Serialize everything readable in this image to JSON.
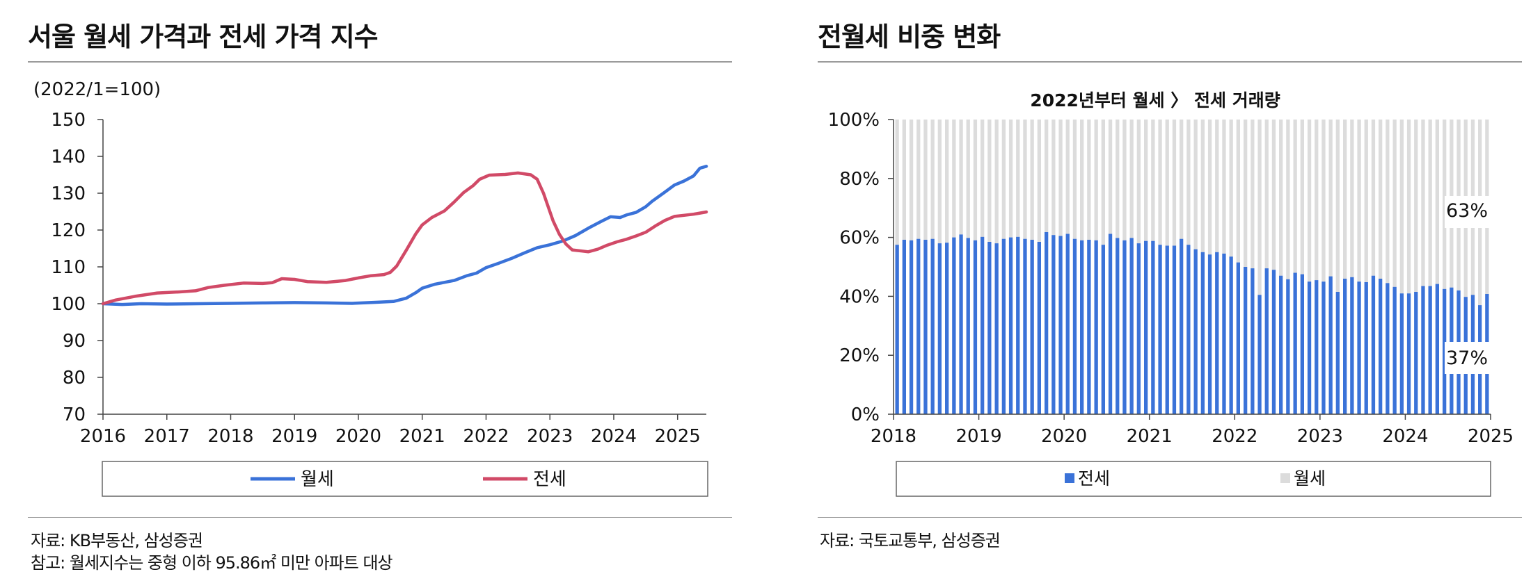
{
  "left": {
    "title": "서울 월세 가격과 전세 가격 지수",
    "source": "자료: KB부동산, 삼성증권",
    "note": "참고: 월세지수는 중형 이하 95.86㎡ 미만 아파트 대상"
  },
  "right": {
    "title": "전월세 비중 변화",
    "source": "자료: 국토교통부, 삼성증권"
  },
  "colors": {
    "wolse": "#3a72d8",
    "jeonse": "#d14a67",
    "bar_jeonse": "#3a72d8",
    "bar_wolse": "#dcdcdc"
  },
  "chart_data": [
    {
      "type": "line",
      "unit_label": "(2022/1=100)",
      "ylim": [
        70,
        150
      ],
      "yticks": [
        "150",
        "140",
        "130",
        "120",
        "110",
        "100",
        "90",
        "80",
        "70"
      ],
      "xlim": [
        2016,
        2025.45
      ],
      "xticks": [
        "2016",
        "2017",
        "2018",
        "2019",
        "2020",
        "2021",
        "2022",
        "2023",
        "2024",
        "2025"
      ],
      "series": [
        {
          "name": "월세",
          "color": "#3a72d8",
          "points": [
            [
              2016.0,
              100.0
            ],
            [
              2016.3,
              99.8
            ],
            [
              2016.6,
              100.0
            ],
            [
              2017.0,
              99.9
            ],
            [
              2017.5,
              100.0
            ],
            [
              2018.0,
              100.1
            ],
            [
              2018.5,
              100.2
            ],
            [
              2019.0,
              100.3
            ],
            [
              2019.5,
              100.2
            ],
            [
              2019.9,
              100.1
            ],
            [
              2020.3,
              100.4
            ],
            [
              2020.55,
              100.6
            ],
            [
              2020.75,
              101.5
            ],
            [
              2020.9,
              103.0
            ],
            [
              2021.0,
              104.2
            ],
            [
              2021.2,
              105.3
            ],
            [
              2021.5,
              106.3
            ],
            [
              2021.7,
              107.6
            ],
            [
              2021.85,
              108.3
            ],
            [
              2022.0,
              109.8
            ],
            [
              2022.2,
              111.0
            ],
            [
              2022.4,
              112.3
            ],
            [
              2022.6,
              113.8
            ],
            [
              2022.8,
              115.2
            ],
            [
              2023.0,
              116.0
            ],
            [
              2023.2,
              117.0
            ],
            [
              2023.4,
              118.5
            ],
            [
              2023.6,
              120.5
            ],
            [
              2023.8,
              122.3
            ],
            [
              2023.95,
              123.6
            ],
            [
              2024.1,
              123.4
            ],
            [
              2024.2,
              124.1
            ],
            [
              2024.35,
              124.8
            ],
            [
              2024.5,
              126.3
            ],
            [
              2024.6,
              127.8
            ],
            [
              2024.8,
              130.3
            ],
            [
              2024.95,
              132.2
            ],
            [
              2025.1,
              133.3
            ],
            [
              2025.25,
              134.7
            ],
            [
              2025.35,
              136.8
            ],
            [
              2025.45,
              137.3
            ]
          ]
        },
        {
          "name": "전세",
          "color": "#d14a67",
          "points": [
            [
              2016.0,
              100.0
            ],
            [
              2016.2,
              101.0
            ],
            [
              2016.5,
              102.0
            ],
            [
              2016.85,
              102.9
            ],
            [
              2017.2,
              103.2
            ],
            [
              2017.45,
              103.5
            ],
            [
              2017.65,
              104.4
            ],
            [
              2017.9,
              105.0
            ],
            [
              2018.2,
              105.6
            ],
            [
              2018.5,
              105.5
            ],
            [
              2018.65,
              105.7
            ],
            [
              2018.8,
              106.8
            ],
            [
              2019.0,
              106.6
            ],
            [
              2019.2,
              106.0
            ],
            [
              2019.5,
              105.8
            ],
            [
              2019.8,
              106.3
            ],
            [
              2020.0,
              107.0
            ],
            [
              2020.2,
              107.6
            ],
            [
              2020.4,
              107.9
            ],
            [
              2020.5,
              108.5
            ],
            [
              2020.6,
              110.2
            ],
            [
              2020.75,
              114.5
            ],
            [
              2020.9,
              119.0
            ],
            [
              2021.0,
              121.4
            ],
            [
              2021.15,
              123.4
            ],
            [
              2021.35,
              125.2
            ],
            [
              2021.5,
              127.6
            ],
            [
              2021.65,
              130.2
            ],
            [
              2021.8,
              132.1
            ],
            [
              2021.9,
              133.8
            ],
            [
              2022.05,
              134.9
            ],
            [
              2022.3,
              135.1
            ],
            [
              2022.5,
              135.5
            ],
            [
              2022.7,
              135.0
            ],
            [
              2022.8,
              133.8
            ],
            [
              2022.9,
              130.0
            ],
            [
              2022.95,
              127.5
            ],
            [
              2023.05,
              122.5
            ],
            [
              2023.15,
              118.8
            ],
            [
              2023.25,
              116.2
            ],
            [
              2023.35,
              114.6
            ],
            [
              2023.5,
              114.3
            ],
            [
              2023.6,
              114.1
            ],
            [
              2023.75,
              114.8
            ],
            [
              2023.9,
              115.9
            ],
            [
              2024.05,
              116.8
            ],
            [
              2024.2,
              117.5
            ],
            [
              2024.35,
              118.4
            ],
            [
              2024.5,
              119.4
            ],
            [
              2024.65,
              121.1
            ],
            [
              2024.8,
              122.6
            ],
            [
              2024.95,
              123.7
            ],
            [
              2025.1,
              124.0
            ],
            [
              2025.25,
              124.3
            ],
            [
              2025.35,
              124.6
            ],
            [
              2025.45,
              124.9
            ]
          ]
        }
      ],
      "legend": [
        "월세",
        "전세"
      ]
    },
    {
      "type": "bar",
      "stacked": true,
      "title": "2022년부터 월세 〉 전세 거래량",
      "ylim": [
        0,
        100
      ],
      "yticks": [
        "100%",
        "80%",
        "60%",
        "40%",
        "20%",
        "0%"
      ],
      "start": "2018-01",
      "xticks": [
        "2018",
        "2019",
        "2020",
        "2021",
        "2022",
        "2023",
        "2024",
        "2025"
      ],
      "series": [
        {
          "name": "전세",
          "color": "#3a72d8",
          "values": [
            57.5,
            59.2,
            59.0,
            59.5,
            59.2,
            59.5,
            58.0,
            58.2,
            60.0,
            61.0,
            59.8,
            59.0,
            60.2,
            58.5,
            58.0,
            59.5,
            60.0,
            60.2,
            59.5,
            59.2,
            58.5,
            61.8,
            60.8,
            60.5,
            61.2,
            59.5,
            59.0,
            59.2,
            59.0,
            57.5,
            61.2,
            59.8,
            59.0,
            59.8,
            58.0,
            58.8,
            58.8,
            57.5,
            57.2,
            57.2,
            59.5,
            57.5,
            56.0,
            55.0,
            54.2,
            55.0,
            54.5,
            53.5,
            51.5,
            50.0,
            49.5,
            40.5,
            49.5,
            49.0,
            47.0,
            45.8,
            48.0,
            47.5,
            45.0,
            45.5,
            45.0,
            46.8,
            41.5,
            46.0,
            46.5,
            45.0,
            44.8,
            47.0,
            46.0,
            44.5,
            43.2,
            41.0,
            41.0,
            41.5,
            43.5,
            43.5,
            44.2,
            42.5,
            43.0,
            42.0,
            39.8,
            40.5,
            37.0,
            40.8
          ]
        },
        {
          "name": "월세",
          "color": "#dcdcdc",
          "values": "remainder to 100%"
        }
      ],
      "annotations": [
        {
          "text": "63%"
        },
        {
          "text": "37%"
        }
      ],
      "legend": [
        "전세",
        "월세"
      ]
    }
  ]
}
